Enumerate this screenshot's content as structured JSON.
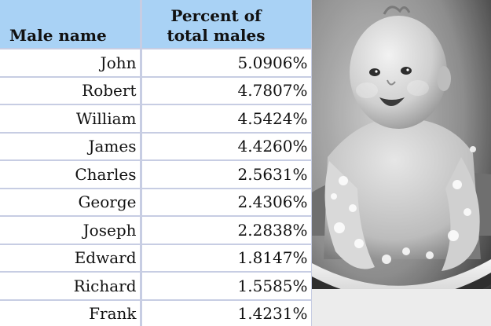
{
  "table": {
    "headers": {
      "name": "Male name",
      "percent_line1": "Percent of",
      "percent_line2": "total males"
    },
    "rows": [
      {
        "name": "John",
        "percent": "5.0906%"
      },
      {
        "name": "Robert",
        "percent": "4.7807%"
      },
      {
        "name": "William",
        "percent": "4.5424%"
      },
      {
        "name": "James",
        "percent": "4.4260%"
      },
      {
        "name": "Charles",
        "percent": "2.5631%"
      },
      {
        "name": "George",
        "percent": "2.4306%"
      },
      {
        "name": "Joseph",
        "percent": "2.2838%"
      },
      {
        "name": "Edward",
        "percent": "1.8147%"
      },
      {
        "name": "Richard",
        "percent": "1.5585%"
      },
      {
        "name": "Frank",
        "percent": "1.4231%"
      }
    ]
  },
  "photo": {
    "icon": "baby-in-bathtub-photo",
    "style": "black-and-white"
  }
}
